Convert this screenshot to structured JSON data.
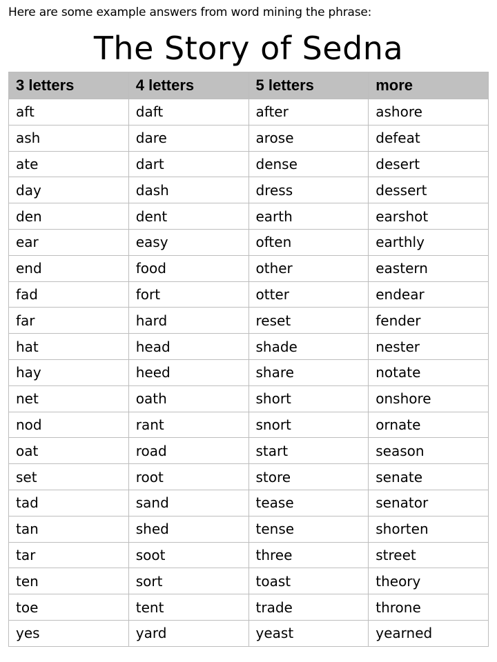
{
  "intro": "Here are some example answers from word mining the phrase:",
  "title": "The Story of Sedna",
  "table": {
    "headers": [
      "3 letters",
      "4 letters",
      "5 letters",
      "more"
    ],
    "rows": [
      [
        "aft",
        "daft",
        "after",
        "ashore"
      ],
      [
        "ash",
        "dare",
        "arose",
        "defeat"
      ],
      [
        "ate",
        "dart",
        "dense",
        "desert"
      ],
      [
        "day",
        "dash",
        "dress",
        "dessert"
      ],
      [
        "den",
        "dent",
        "earth",
        "earshot"
      ],
      [
        "ear",
        "easy",
        "often",
        "earthly"
      ],
      [
        "end",
        "food",
        "other",
        "eastern"
      ],
      [
        "fad",
        "fort",
        "otter",
        "endear"
      ],
      [
        "far",
        "hard",
        "reset",
        "fender"
      ],
      [
        "hat",
        "head",
        "shade",
        "nester"
      ],
      [
        "hay",
        "heed",
        "share",
        "notate"
      ],
      [
        "net",
        "oath",
        "short",
        "onshore"
      ],
      [
        "nod",
        "rant",
        "snort",
        "ornate"
      ],
      [
        "oat",
        "road",
        "start",
        "season"
      ],
      [
        "set",
        "root",
        "store",
        "senate"
      ],
      [
        "tad",
        "sand",
        "tease",
        "senator"
      ],
      [
        "tan",
        "shed",
        "tense",
        "shorten"
      ],
      [
        "tar",
        "soot",
        "three",
        "street"
      ],
      [
        "ten",
        "sort",
        "toast",
        "theory"
      ],
      [
        "toe",
        "tent",
        "trade",
        "throne"
      ],
      [
        "yes",
        "yard",
        "yeast",
        "yearned"
      ]
    ]
  }
}
